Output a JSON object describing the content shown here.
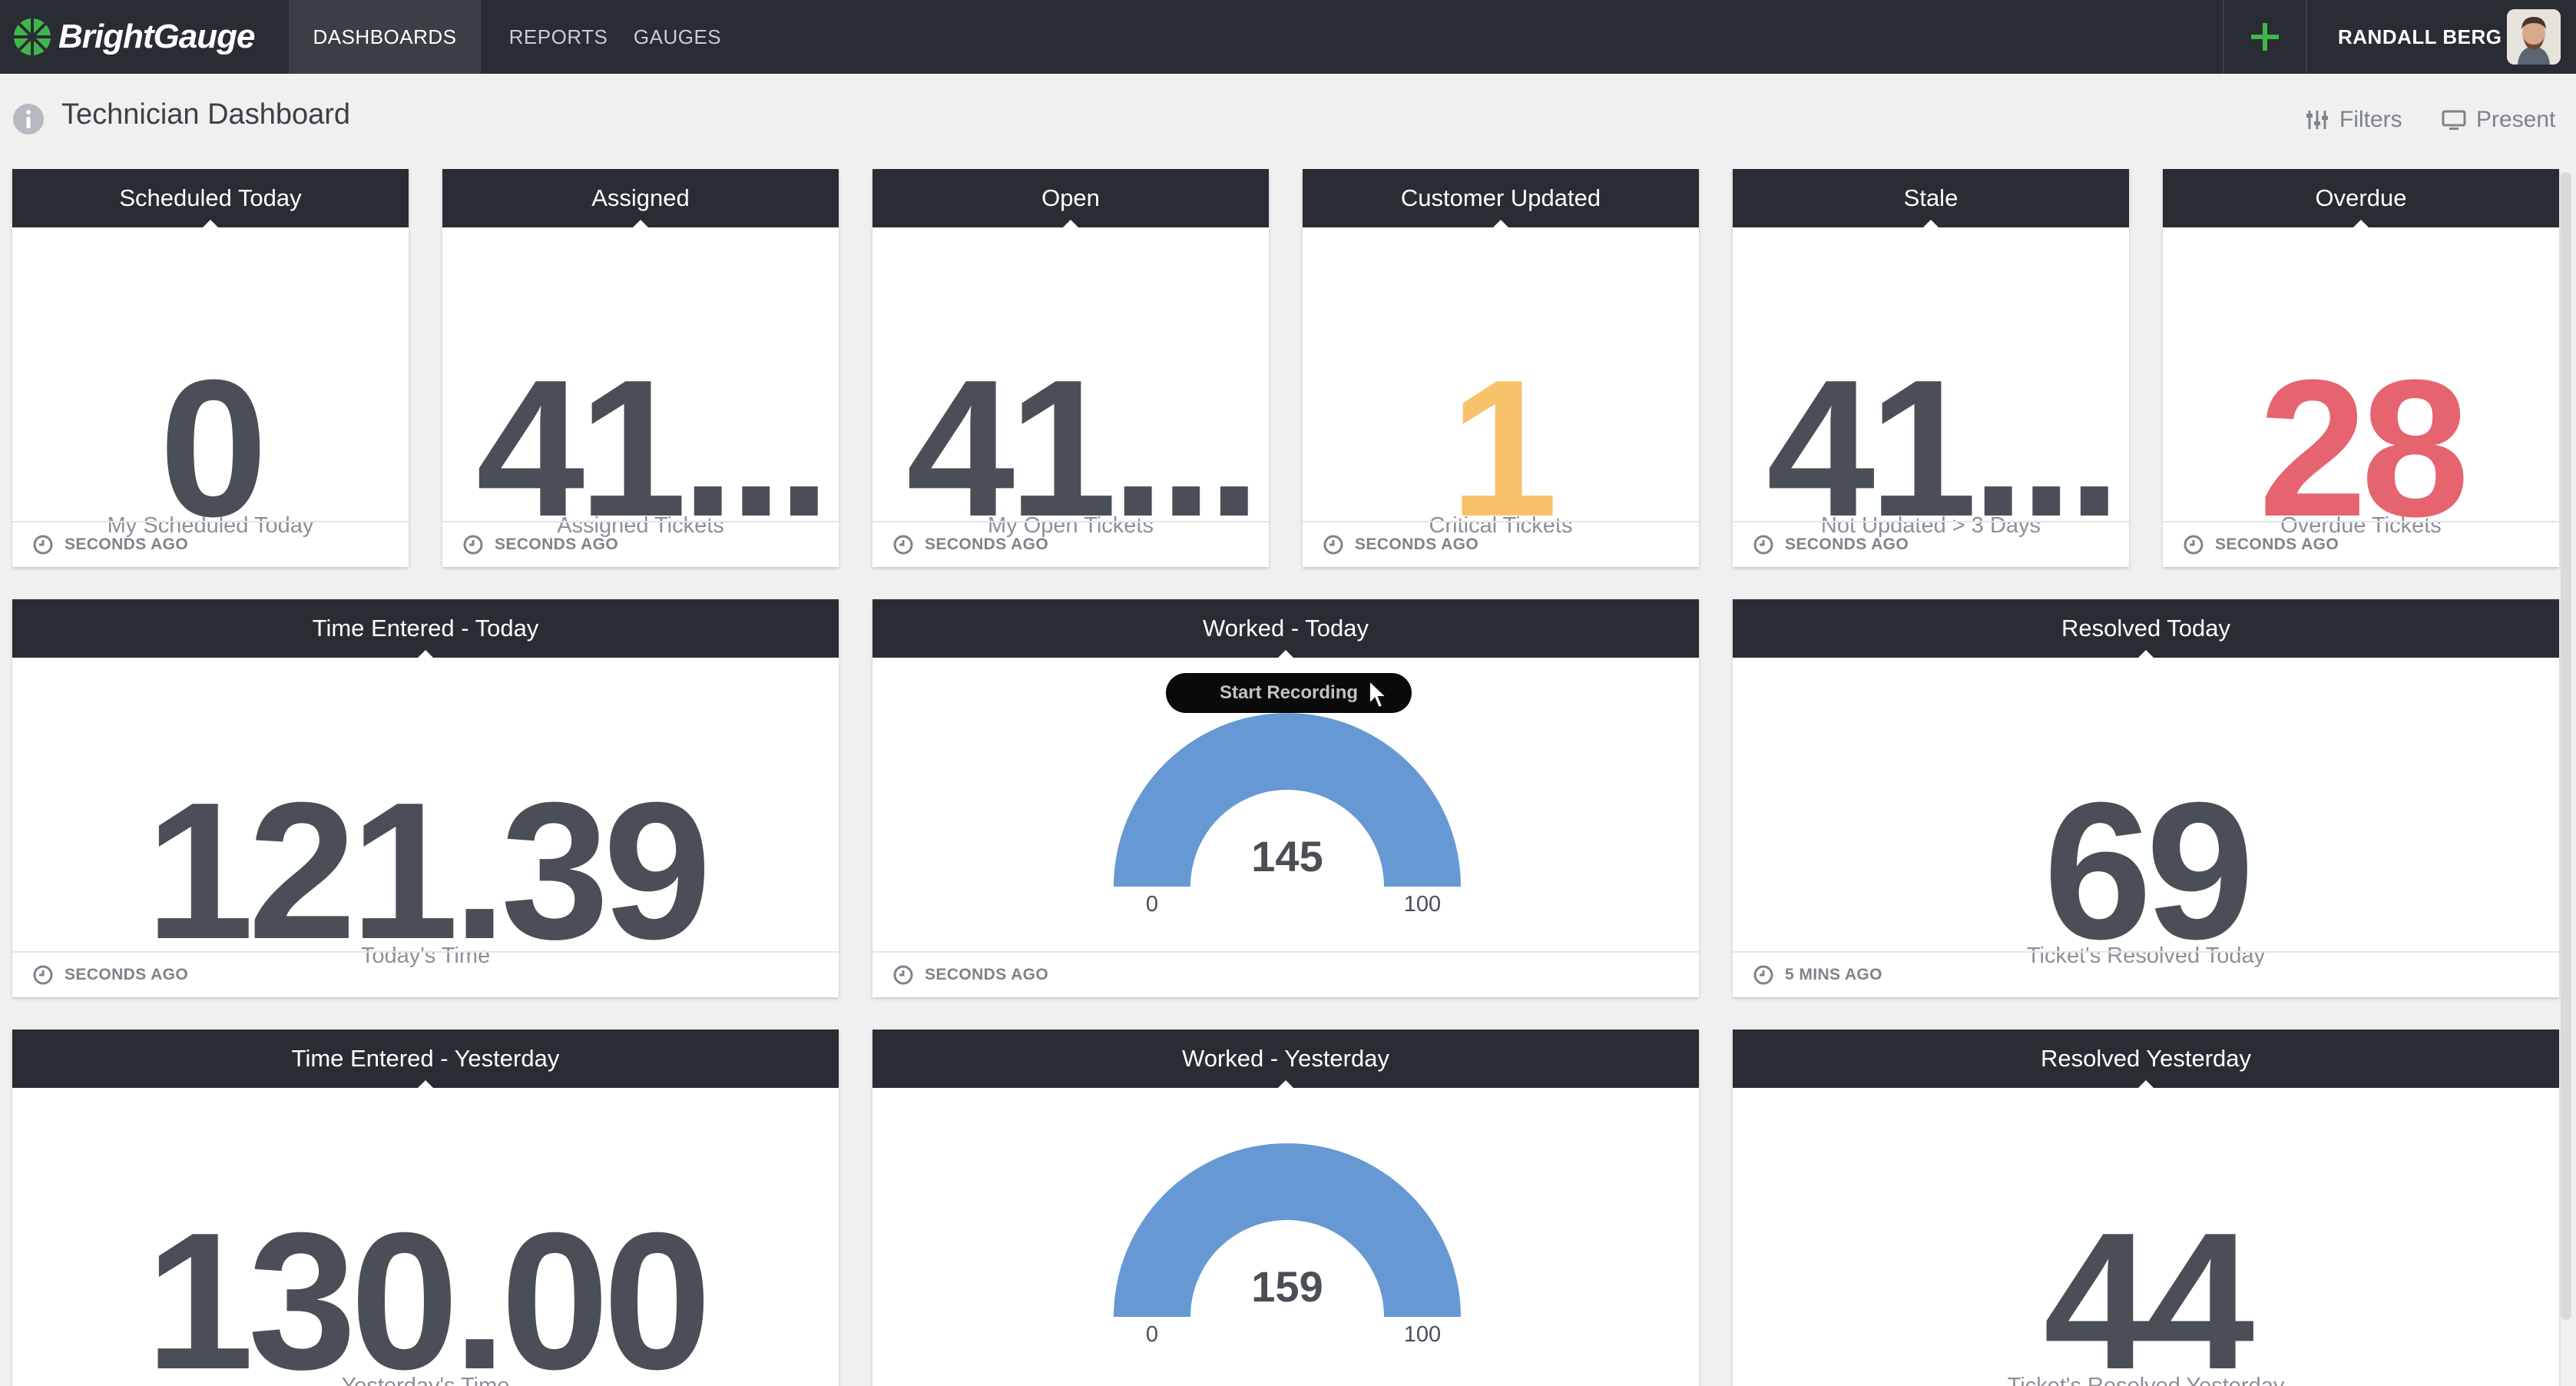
{
  "app": {
    "brand": "BrightGauge",
    "nav": {
      "dashboards": "DASHBOARDS",
      "reports": "REPORTS",
      "gauges": "GAUGES"
    },
    "user": "RANDALL BERG"
  },
  "header": {
    "title": "Technician Dashboard",
    "filters": "Filters",
    "present": "Present"
  },
  "colors": {
    "accent_green": "#3fb649",
    "orange": "#f7c26a",
    "red": "#e5646f",
    "gauge_blue": "#6699d3",
    "nav_bg": "#292d33"
  },
  "cards": {
    "scheduled": {
      "title": "Scheduled Today",
      "value": "0",
      "caption": "My Scheduled Today",
      "updated": "SECONDS AGO"
    },
    "assigned": {
      "title": "Assigned",
      "value": "41...",
      "caption": "Assigned Tickets",
      "updated": "SECONDS AGO"
    },
    "open": {
      "title": "Open",
      "value": "41...",
      "caption": "My Open Tickets",
      "updated": "SECONDS AGO"
    },
    "customer_updated": {
      "title": "Customer Updated",
      "value": "1",
      "caption": "Critical Tickets",
      "updated": "SECONDS AGO"
    },
    "stale": {
      "title": "Stale",
      "value": "41...",
      "caption": "Not Updated > 3 Days",
      "updated": "SECONDS AGO"
    },
    "overdue": {
      "title": "Overdue",
      "value": "28",
      "caption": "Overdue Tickets",
      "updated": "SECONDS AGO"
    },
    "time_today": {
      "title": "Time Entered - Today",
      "value": "121.39",
      "caption": "Today's Time",
      "updated": "SECONDS AGO"
    },
    "worked_today": {
      "title": "Worked - Today",
      "value": "145",
      "min": "0",
      "max": "100",
      "updated": "SECONDS AGO",
      "overlay": "Start Recording"
    },
    "resolved_today": {
      "title": "Resolved Today",
      "value": "69",
      "caption": "Ticket's Resolved Today",
      "updated": "5 MINS AGO"
    },
    "time_yesterday": {
      "title": "Time Entered - Yesterday",
      "value": "130.00",
      "caption": "Yesterday's Time"
    },
    "worked_yesterday": {
      "title": "Worked - Yesterday",
      "value": "159",
      "min": "0",
      "max": "100"
    },
    "resolved_yesterday": {
      "title": "Resolved Yesterday",
      "value": "44",
      "caption": "Ticket's Resolved Yesterday"
    }
  }
}
